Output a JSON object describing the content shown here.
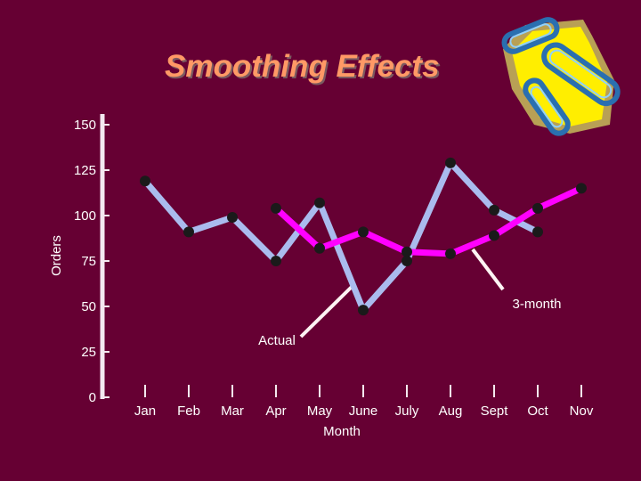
{
  "chart_data": {
    "type": "line",
    "title": "Smoothing Effects",
    "xlabel": "Month",
    "ylabel": "Orders",
    "ylim": [
      0,
      150
    ],
    "yticks": [
      0,
      25,
      50,
      75,
      100,
      125,
      150
    ],
    "categories": [
      "Jan",
      "Feb",
      "Mar",
      "Apr",
      "May",
      "June",
      "July",
      "Aug",
      "Sept",
      "Oct",
      "Nov"
    ],
    "series": [
      {
        "name": "Actual",
        "color": "#aabbee",
        "values": [
          119,
          91,
          99,
          75,
          107,
          48,
          75,
          129,
          103,
          91,
          null
        ]
      },
      {
        "name": "3-month",
        "color": "#ff00ff",
        "values": [
          null,
          null,
          null,
          104,
          82,
          91,
          80,
          79,
          89,
          104,
          115
        ]
      }
    ],
    "annotations": [
      "Actual",
      "3-month"
    ],
    "grid": false
  }
}
